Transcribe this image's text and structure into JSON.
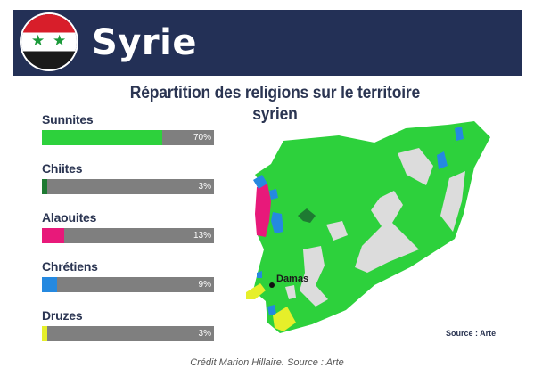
{
  "header": {
    "title": "Syrie",
    "flag_colors": [
      "#d81e2a",
      "#ffffff",
      "#1a1a1a",
      "#1b9a3a"
    ],
    "flag_icon": "syria-flag-icon",
    "star_glyph": "★"
  },
  "chart_data": {
    "type": "bar",
    "orientation": "horizontal",
    "title": "Répartition des religions sur le territoire syrien",
    "categories": [
      "Sunnites",
      "Chiites",
      "Alaouites",
      "Chrétiens",
      "Druzes"
    ],
    "values": [
      70,
      3,
      13,
      9,
      3
    ],
    "value_labels": [
      "70%",
      "3%",
      "13%",
      "9%",
      "3%"
    ],
    "colors": [
      "#2dd13c",
      "#1e7a32",
      "#e8197a",
      "#2589e0",
      "#e6ef2a"
    ],
    "track_color": "#7f7f7f",
    "xlim": [
      0,
      100
    ],
    "unit": "%"
  },
  "map": {
    "label_damascus": "Damas",
    "source": "Source : Arte",
    "colors": {
      "sunni": "#2dd13c",
      "alawite": "#e8197a",
      "christian": "#2589e0",
      "shia": "#1e7a32",
      "druze": "#e6ef2a",
      "uninhabited": "#dcdcdc"
    }
  },
  "credit": "Crédit Marion Hillaire. Source : Arte"
}
